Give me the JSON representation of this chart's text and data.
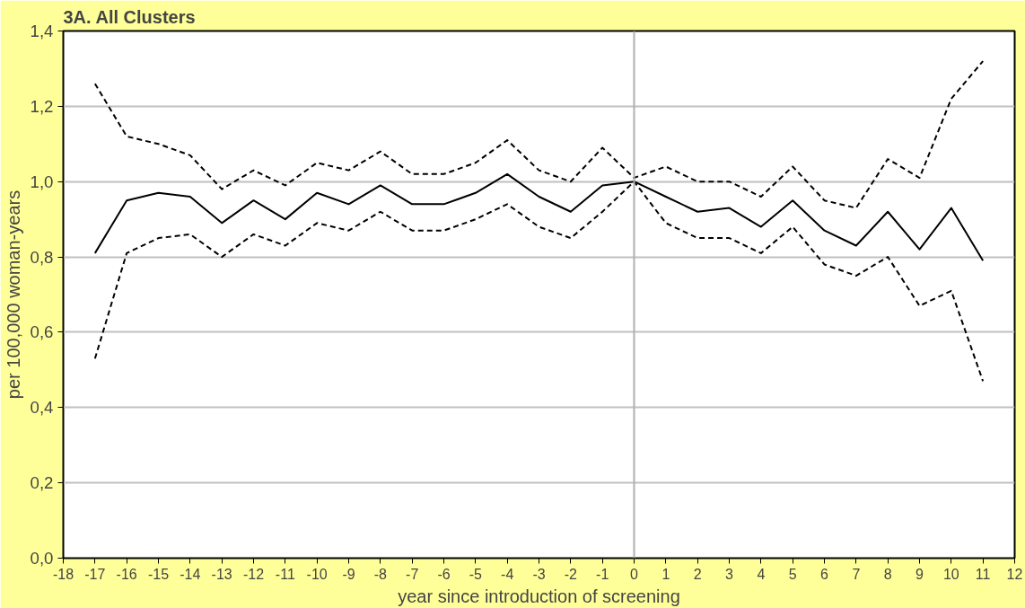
{
  "chart_data": {
    "type": "line",
    "title": "3A. All Clusters",
    "xlabel": "year since introduction of screening",
    "ylabel": "per 100,000 woman-years",
    "x": [
      -17,
      -16,
      -15,
      -14,
      -13,
      -12,
      -11,
      -10,
      -9,
      -8,
      -7,
      -6,
      -5,
      -4,
      -3,
      -2,
      -1,
      0,
      1,
      2,
      3,
      4,
      5,
      6,
      7,
      8,
      9,
      10,
      11
    ],
    "series": [
      {
        "color": "#000000",
        "line_style": "solid",
        "values": [
          0.81,
          0.95,
          0.97,
          0.96,
          0.89,
          0.95,
          0.9,
          0.97,
          0.94,
          0.99,
          0.94,
          0.94,
          0.97,
          1.02,
          0.96,
          0.92,
          0.99,
          1.0,
          0.96,
          0.92,
          0.93,
          0.88,
          0.95,
          0.87,
          0.83,
          0.92,
          0.82,
          0.93,
          0.79
        ]
      },
      {
        "color": "#000000",
        "line_style": "dashed",
        "values": [
          1.26,
          1.12,
          1.1,
          1.07,
          0.98,
          1.03,
          0.99,
          1.05,
          1.03,
          1.08,
          1.02,
          1.02,
          1.05,
          1.11,
          1.03,
          1.0,
          1.09,
          1.01,
          1.04,
          1.0,
          1.0,
          0.96,
          1.04,
          0.95,
          0.93,
          1.06,
          1.01,
          1.22,
          1.32
        ]
      },
      {
        "color": "#000000",
        "line_style": "dashed",
        "values": [
          0.53,
          0.81,
          0.85,
          0.86,
          0.8,
          0.86,
          0.83,
          0.89,
          0.87,
          0.92,
          0.87,
          0.87,
          0.9,
          0.94,
          0.88,
          0.85,
          0.92,
          1.0,
          0.89,
          0.85,
          0.85,
          0.81,
          0.88,
          0.78,
          0.75,
          0.8,
          0.67,
          0.71,
          0.47
        ]
      }
    ],
    "xlim": [
      -18,
      12
    ],
    "xticks": [
      -18,
      -17,
      -16,
      -15,
      -14,
      -13,
      -12,
      -11,
      -10,
      -9,
      -8,
      -7,
      -6,
      -5,
      -4,
      -3,
      -2,
      -1,
      0,
      1,
      2,
      3,
      4,
      5,
      6,
      7,
      8,
      9,
      10,
      11,
      12
    ],
    "ylim": [
      0,
      1.4
    ],
    "yticks": [
      {
        "value": 0,
        "label": "0,0"
      },
      {
        "value": 0.2,
        "label": "0,2"
      },
      {
        "value": 0.4,
        "label": "0,4"
      },
      {
        "value": 0.6,
        "label": "0,6"
      },
      {
        "value": 0.8,
        "label": "0,8"
      },
      {
        "value": 1.0,
        "label": "1,0"
      },
      {
        "value": 1.2,
        "label": "1,2"
      },
      {
        "value": 1.4,
        "label": "1,4"
      }
    ],
    "ref_lines": [
      {
        "axis": "x",
        "value": 0,
        "color": "#b0b0b0"
      }
    ],
    "grid": "y"
  }
}
